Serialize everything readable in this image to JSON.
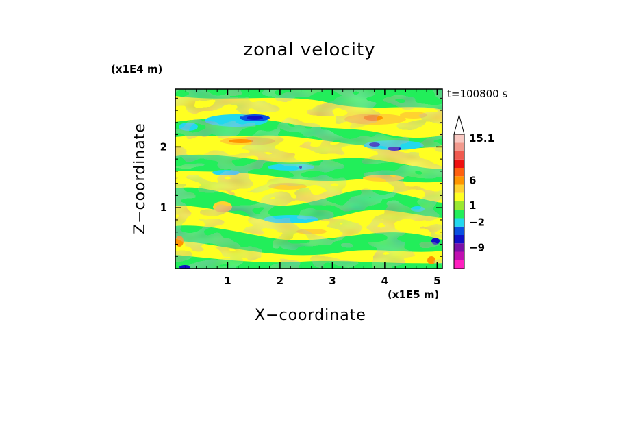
{
  "chart_data": {
    "type": "heatmap",
    "title": "zonal velocity",
    "xlabel": "X−coordinate",
    "ylabel": "Z−coordinate",
    "x_unit_label": "(x1E5 m)",
    "y_unit_label": "(x1E4 m)",
    "time_label": "t=100800 s",
    "xlim": [
      0,
      5.1
    ],
    "ylim": [
      0,
      2.95
    ],
    "x_ticks": [
      1,
      2,
      3,
      4,
      5
    ],
    "y_ticks": [
      1,
      2
    ],
    "x_tick_labels": [
      "1",
      "2",
      "3",
      "4",
      "5"
    ],
    "y_tick_labels": [
      "1",
      "2"
    ],
    "colorbar": {
      "labeled_values": [
        "15.1",
        "6",
        "1",
        "−2",
        "−9"
      ],
      "bins": [
        {
          "color": "#ff1fbf"
        },
        {
          "color": "#c010b0"
        },
        {
          "color": "#7a10a8"
        },
        {
          "color": "#1010c8"
        },
        {
          "color": "#0a50e0"
        },
        {
          "color": "#22d8ee"
        },
        {
          "color": "#22ee5a"
        },
        {
          "color": "#9ae830"
        },
        {
          "color": "#ffff22"
        },
        {
          "color": "#ffd230"
        },
        {
          "color": "#ff9500"
        },
        {
          "color": "#ff6010"
        },
        {
          "color": "#ee1010"
        },
        {
          "color": "#f05a50"
        },
        {
          "color": "#f29a8e"
        },
        {
          "color": "#f9c8c2"
        }
      ]
    },
    "field_features": [
      {
        "x": 1.55,
        "z": 2.5,
        "value": -9
      },
      {
        "x": 3.9,
        "z": 2.06,
        "value": -9
      },
      {
        "x": 3.85,
        "z": 2.55,
        "value": 6
      },
      {
        "x": 1.5,
        "z": 2.12,
        "value": 3
      },
      {
        "x": 2.3,
        "z": 1.5,
        "value": -4
      },
      {
        "x": 1.9,
        "z": 0.82,
        "value": -3
      },
      {
        "x": 2.4,
        "z": 0.5,
        "value": 0.5
      },
      {
        "x": 4.5,
        "z": 0.8,
        "value": 0.5
      },
      {
        "x": 0.8,
        "z": 1.05,
        "value": 2
      },
      {
        "x": 3.6,
        "z": 1.3,
        "value": 0.5
      }
    ]
  }
}
